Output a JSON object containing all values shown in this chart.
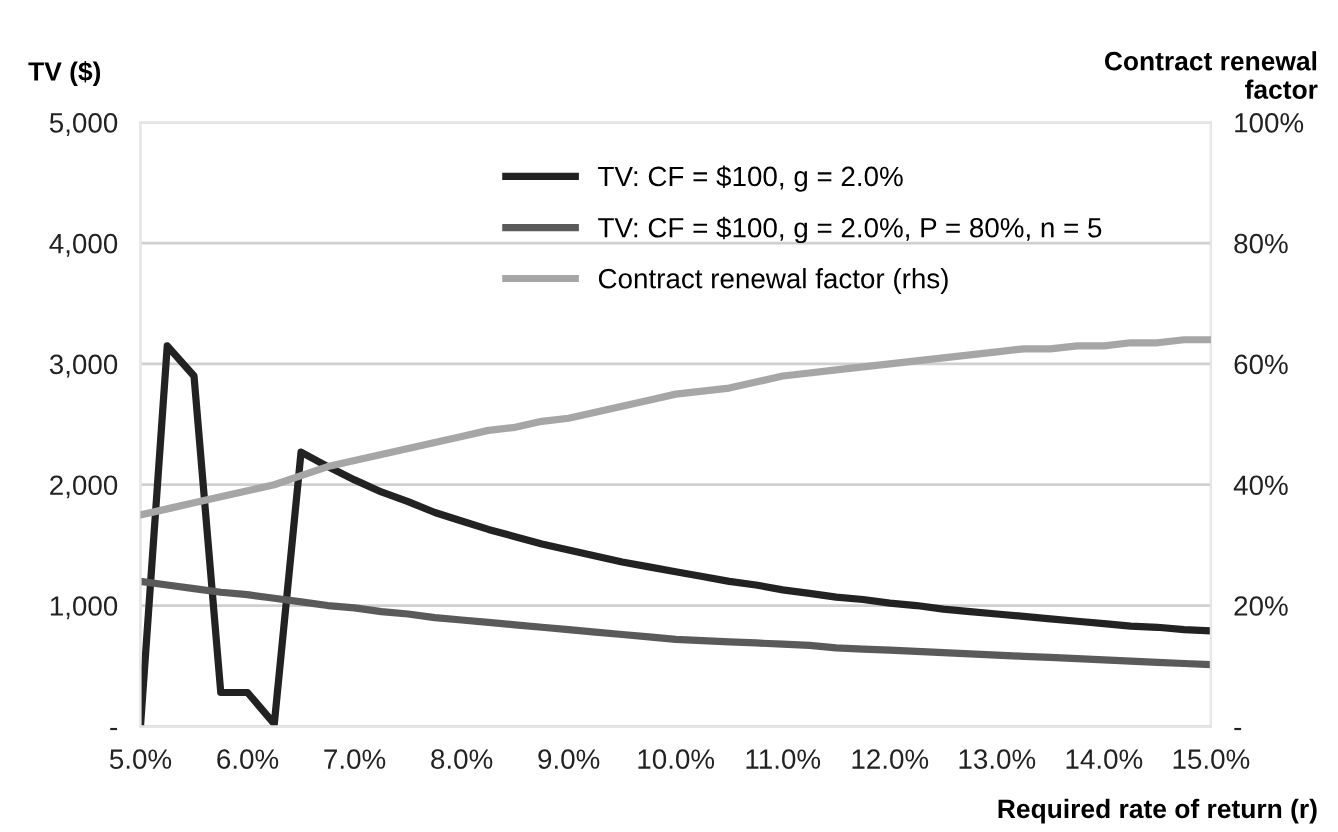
{
  "chart_data": {
    "type": "line",
    "xlabel": "Required rate of return (r)",
    "ylabel": "TV ($)",
    "y2label": "Contract renewal\nfactor",
    "x": [
      5.0,
      5.25,
      5.5,
      5.75,
      6.0,
      6.25,
      6.5,
      6.75,
      7.0,
      7.25,
      7.5,
      7.75,
      8.0,
      8.25,
      8.5,
      8.75,
      9.0,
      9.25,
      9.5,
      9.75,
      10.0,
      10.25,
      10.5,
      10.75,
      11.0,
      11.25,
      11.5,
      11.75,
      12.0,
      12.25,
      12.5,
      12.75,
      13.0,
      13.25,
      13.5,
      13.75,
      14.0,
      14.25,
      14.5,
      14.75,
      15.0
    ],
    "series": [
      {
        "name": "TV: CF = $100, g = 2.0%",
        "color": "#222222",
        "values": [
          0,
          3150,
          2900,
          280,
          280,
          20,
          2270,
          2150,
          2040,
          1940,
          1860,
          1770,
          1700,
          1630,
          1570,
          1510,
          1460,
          1410,
          1360,
          1320,
          1280,
          1240,
          1200,
          1170,
          1130,
          1100,
          1070,
          1050,
          1020,
          1000,
          970,
          950,
          930,
          910,
          890,
          870,
          850,
          830,
          820,
          800,
          790
        ]
      },
      {
        "name": "TV: CF = $100, g = 2.0%, P = 80%, n = 5",
        "color": "#5a5a5a",
        "values": [
          1200,
          1170,
          1140,
          1110,
          1090,
          1060,
          1030,
          1000,
          980,
          950,
          930,
          900,
          880,
          860,
          840,
          820,
          800,
          780,
          760,
          740,
          720,
          710,
          700,
          690,
          680,
          670,
          650,
          640,
          630,
          620,
          610,
          600,
          590,
          580,
          570,
          560,
          550,
          540,
          530,
          520,
          510
        ]
      },
      {
        "name": "Contract renewal factor (rhs)",
        "color": "#a6a6a6",
        "axis": "y2",
        "values": [
          35,
          36,
          37,
          38,
          39,
          40,
          41.5,
          43,
          44,
          45,
          46,
          47,
          48,
          49,
          49.5,
          50.5,
          51,
          52,
          53,
          54,
          55,
          55.5,
          56,
          57,
          58,
          58.5,
          59,
          59.5,
          60,
          60.5,
          61,
          61.5,
          62,
          62.5,
          62.5,
          63,
          63,
          63.5,
          63.5,
          64,
          64
        ]
      }
    ],
    "xlim": [
      5.0,
      15.0
    ],
    "xticks": [
      {
        "value": 5,
        "label": "5.0%"
      },
      {
        "value": 6,
        "label": "6.0%"
      },
      {
        "value": 7,
        "label": "7.0%"
      },
      {
        "value": 8,
        "label": "8.0%"
      },
      {
        "value": 9,
        "label": "9.0%"
      },
      {
        "value": 10,
        "label": "10.0%"
      },
      {
        "value": 11,
        "label": "11.0%"
      },
      {
        "value": 12,
        "label": "12.0%"
      },
      {
        "value": 13,
        "label": "13.0%"
      },
      {
        "value": 14,
        "label": "14.0%"
      },
      {
        "value": 15,
        "label": "15.0%"
      }
    ],
    "ylim": [
      0,
      5000
    ],
    "yticks": [
      {
        "value": 0,
        "label": "-"
      },
      {
        "value": 1000,
        "label": "1,000"
      },
      {
        "value": 2000,
        "label": "2,000"
      },
      {
        "value": 3000,
        "label": "3,000"
      },
      {
        "value": 4000,
        "label": "4,000"
      },
      {
        "value": 5000,
        "label": "5,000"
      }
    ],
    "y2lim": [
      0,
      100
    ],
    "y2ticks": [
      {
        "value": 0,
        "label": "-"
      },
      {
        "value": 20,
        "label": "20%"
      },
      {
        "value": 40,
        "label": "40%"
      },
      {
        "value": 60,
        "label": "60%"
      },
      {
        "value": 80,
        "label": "80%"
      },
      {
        "value": 100,
        "label": "100%"
      }
    ],
    "grid": "y",
    "legend": "top",
    "marker": "none",
    "line_style": "solid"
  }
}
